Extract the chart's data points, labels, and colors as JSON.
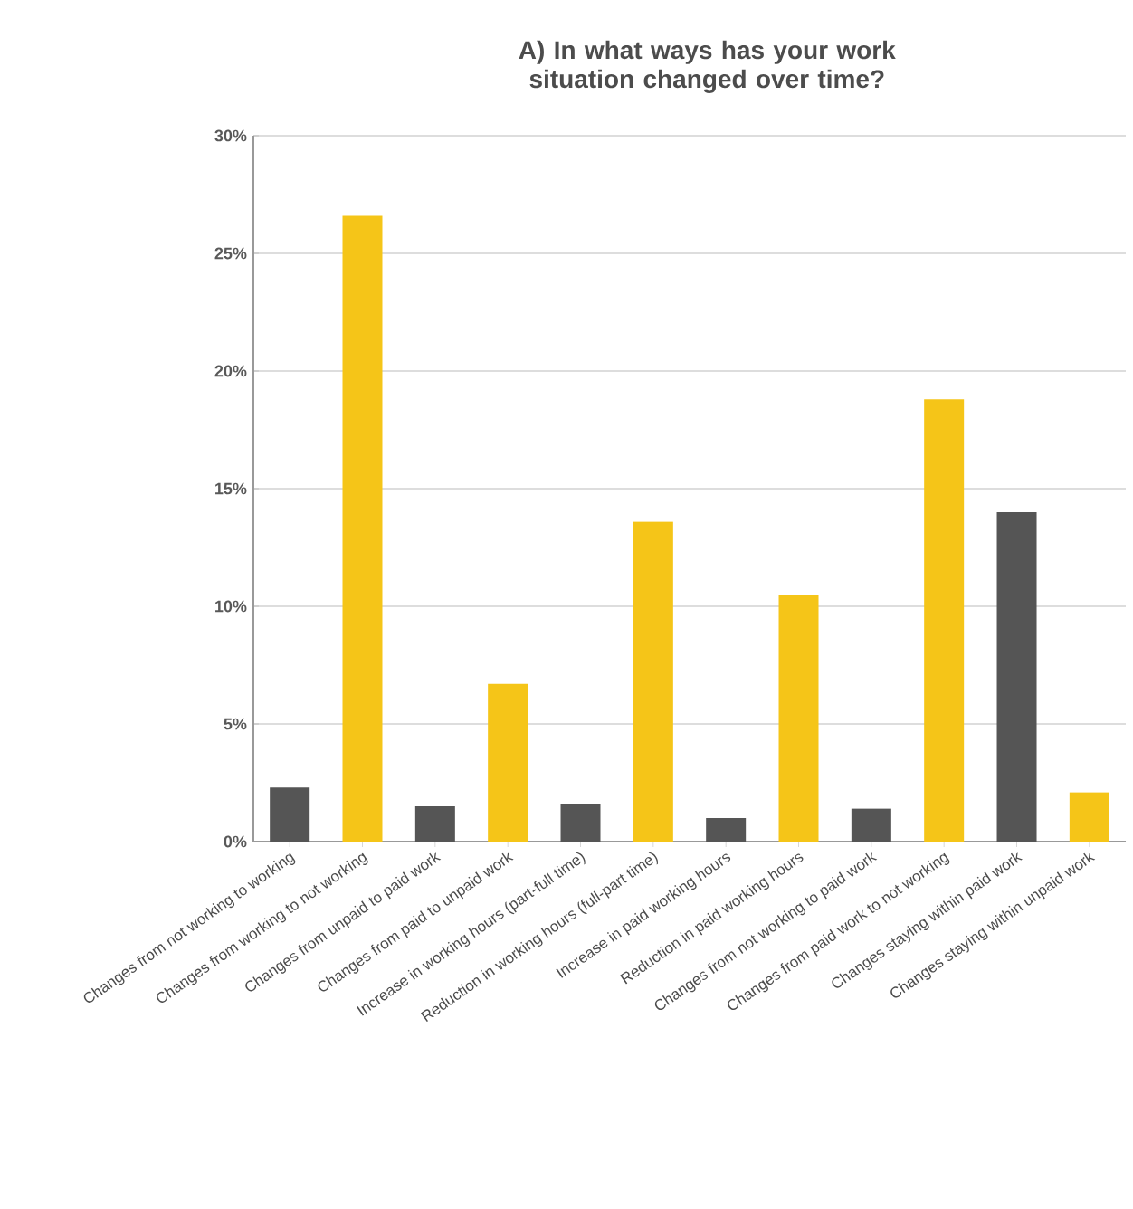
{
  "chart_data": {
    "type": "bar",
    "title": "A) In what ways has your work situation changed over time?",
    "categories": [
      "Changes from not working to working",
      "Changes from working to not working",
      "Changes from unpaid to paid work",
      "Changes from paid to unpaid work",
      "Increase in working hours (part-full time)",
      "Reduction in working hours (full-part time)",
      "Increase in paid working hours",
      "Reduction in paid working hours",
      "Changes from not working to paid work",
      "Changes from paid work to not working",
      "Changes staying within paid work",
      "Changes staying within unpaid work"
    ],
    "values": [
      2.3,
      26.6,
      1.5,
      6.7,
      1.6,
      13.6,
      1.0,
      10.5,
      1.4,
      18.8,
      14.0,
      2.1
    ],
    "colors": [
      "#555555",
      "#f5c518",
      "#555555",
      "#f5c518",
      "#555555",
      "#f5c518",
      "#555555",
      "#f5c518",
      "#555555",
      "#f5c518",
      "#555555",
      "#f5c518"
    ],
    "ylim": [
      0,
      30
    ],
    "yticks": [
      {
        "value": 0,
        "label": "0%"
      },
      {
        "value": 5,
        "label": "5%"
      },
      {
        "value": 10,
        "label": "10%"
      },
      {
        "value": 15,
        "label": "15%"
      },
      {
        "value": 20,
        "label": "20%"
      },
      {
        "value": 25,
        "label": "25%"
      },
      {
        "value": 30,
        "label": "30%"
      }
    ],
    "grid": "y"
  }
}
